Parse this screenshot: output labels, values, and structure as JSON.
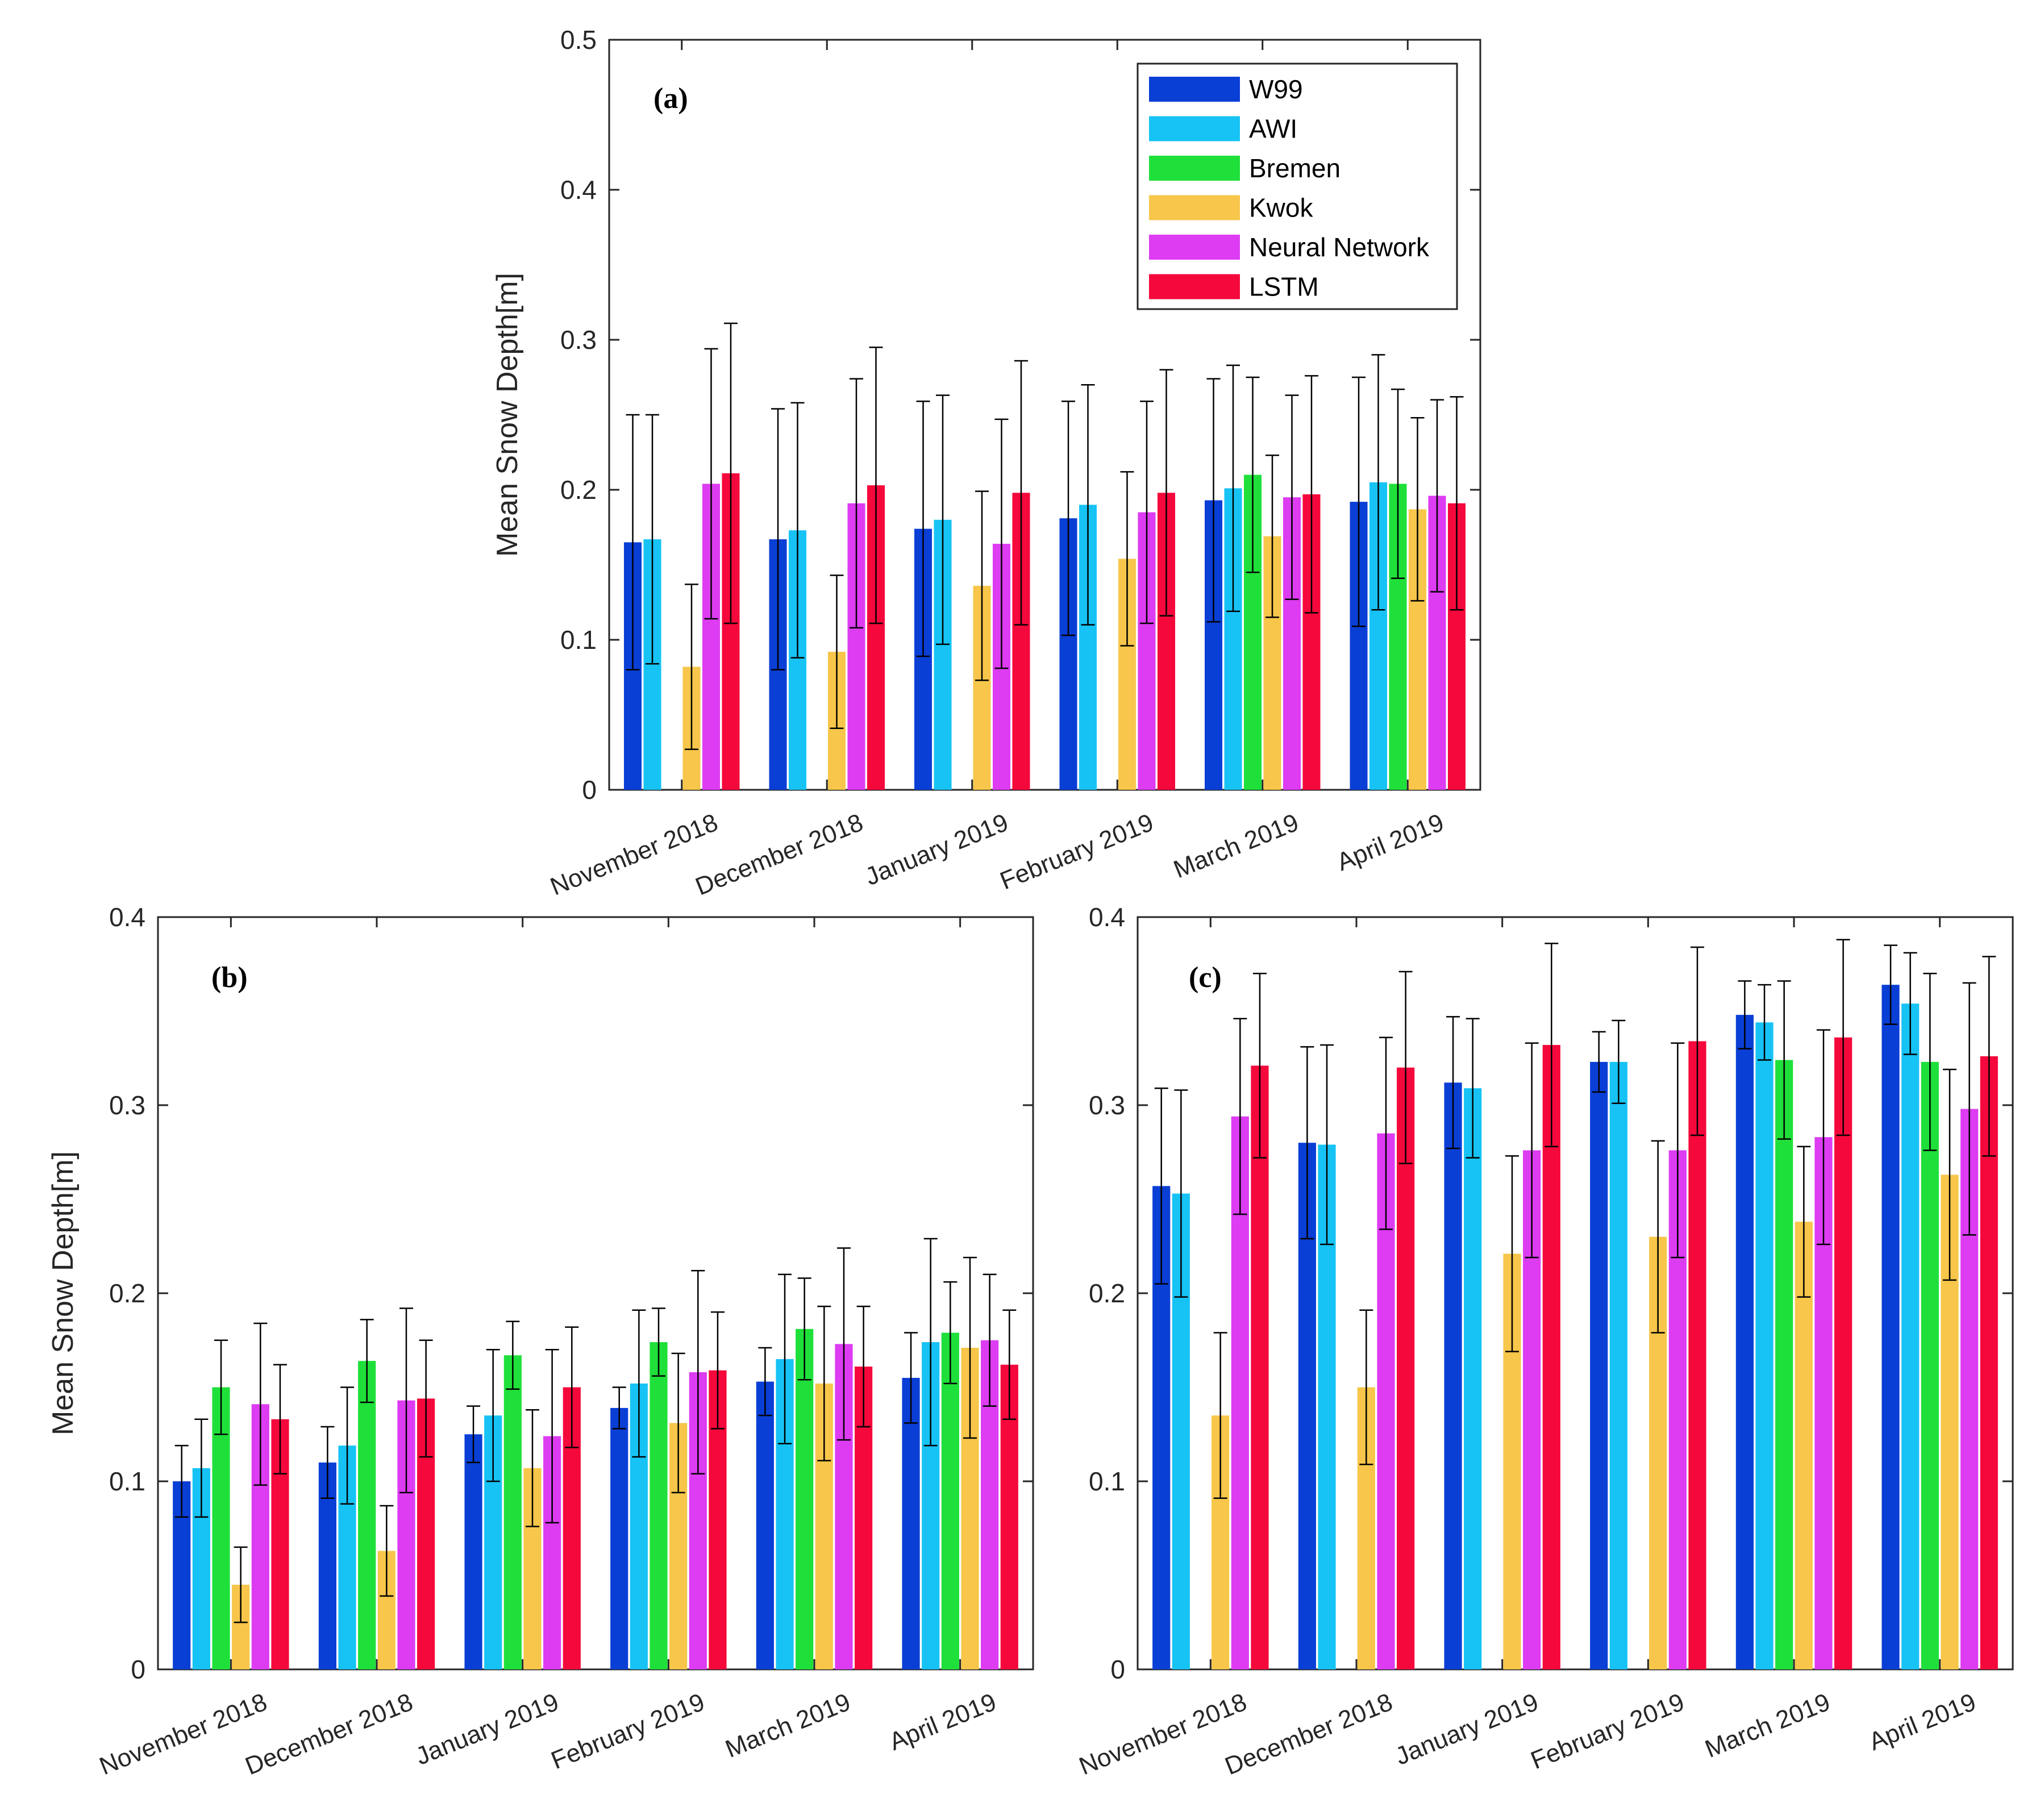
{
  "colors": {
    "W99": "#0a3fd6",
    "AWI": "#17c3f5",
    "Bremen": "#1fe03a",
    "Kwok": "#f7c64a",
    "Neural Network": "#dd3cf2",
    "LSTM": "#f5083b"
  },
  "chart_data": [
    {
      "type": "bar",
      "panel_label": "(a)",
      "ylabel": "Mean Snow Depth[m]",
      "ylim": [
        0,
        0.5
      ],
      "yticks": [
        "0",
        "0.1",
        "0.2",
        "0.3",
        "0.4",
        "0.5"
      ],
      "categories": [
        "November 2018",
        "December 2018",
        "January 2019",
        "February 2019",
        "March 2019",
        "April 2019"
      ],
      "legend": {
        "position": "top-right",
        "entries": [
          "W99",
          "AWI",
          "Bremen",
          "Kwok",
          "Neural Network",
          "LSTM"
        ]
      },
      "series": [
        {
          "name": "W99",
          "values": [
            0.165,
            0.167,
            0.174,
            0.181,
            0.193,
            0.192
          ],
          "error": [
            0.085,
            0.087,
            0.085,
            0.078,
            0.081,
            0.083
          ]
        },
        {
          "name": "AWI",
          "values": [
            0.167,
            0.173,
            0.18,
            0.19,
            0.201,
            0.205
          ],
          "error": [
            0.083,
            0.085,
            0.083,
            0.08,
            0.082,
            0.085
          ]
        },
        {
          "name": "Bremen",
          "values": [
            null,
            null,
            null,
            null,
            0.21,
            0.204
          ],
          "error": [
            null,
            null,
            null,
            null,
            0.065,
            0.063
          ]
        },
        {
          "name": "Kwok",
          "values": [
            0.082,
            0.092,
            0.136,
            0.154,
            0.169,
            0.187
          ],
          "error": [
            0.055,
            0.051,
            0.063,
            0.058,
            0.054,
            0.061
          ]
        },
        {
          "name": "Neural Network",
          "values": [
            0.204,
            0.191,
            0.164,
            0.185,
            0.195,
            0.196
          ],
          "error": [
            0.09,
            0.083,
            0.083,
            0.074,
            0.068,
            0.064
          ]
        },
        {
          "name": "LSTM",
          "values": [
            0.211,
            0.203,
            0.198,
            0.198,
            0.197,
            0.191
          ],
          "error": [
            0.1,
            0.092,
            0.088,
            0.082,
            0.079,
            0.071
          ]
        }
      ]
    },
    {
      "type": "bar",
      "panel_label": "(b)",
      "ylabel": "Mean Snow Depth[m]",
      "ylim": [
        0,
        0.4
      ],
      "yticks": [
        "0",
        "0.1",
        "0.2",
        "0.3",
        "0.4"
      ],
      "categories": [
        "November 2018",
        "December 2018",
        "January 2019",
        "February 2019",
        "March 2019",
        "April 2019"
      ],
      "series": [
        {
          "name": "W99",
          "values": [
            0.1,
            0.11,
            0.125,
            0.139,
            0.153,
            0.155
          ],
          "error": [
            0.019,
            0.019,
            0.015,
            0.011,
            0.018,
            0.024
          ]
        },
        {
          "name": "AWI",
          "values": [
            0.107,
            0.119,
            0.135,
            0.152,
            0.165,
            0.174
          ],
          "error": [
            0.026,
            0.031,
            0.035,
            0.039,
            0.045,
            0.055
          ]
        },
        {
          "name": "Bremen",
          "values": [
            0.15,
            0.164,
            0.167,
            0.174,
            0.181,
            0.179
          ],
          "error": [
            0.025,
            0.022,
            0.018,
            0.018,
            0.027,
            0.027
          ]
        },
        {
          "name": "Kwok",
          "values": [
            0.045,
            0.063,
            0.107,
            0.131,
            0.152,
            0.171
          ],
          "error": [
            0.02,
            0.024,
            0.031,
            0.037,
            0.041,
            0.048
          ]
        },
        {
          "name": "Neural Network",
          "values": [
            0.141,
            0.143,
            0.124,
            0.158,
            0.173,
            0.175
          ],
          "error": [
            0.043,
            0.049,
            0.046,
            0.054,
            0.051,
            0.035
          ]
        },
        {
          "name": "LSTM",
          "values": [
            0.133,
            0.144,
            0.15,
            0.159,
            0.161,
            0.162
          ],
          "error": [
            0.029,
            0.031,
            0.032,
            0.031,
            0.032,
            0.029
          ]
        }
      ]
    },
    {
      "type": "bar",
      "panel_label": "(c)",
      "ylabel": "",
      "ylim": [
        0,
        0.4
      ],
      "yticks": [
        "0",
        "0.1",
        "0.2",
        "0.3",
        "0.4"
      ],
      "categories": [
        "November 2018",
        "December 2018",
        "January 2019",
        "February 2019",
        "March 2019",
        "April 2019"
      ],
      "series": [
        {
          "name": "W99",
          "values": [
            0.257,
            0.28,
            0.312,
            0.323,
            0.348,
            0.364
          ],
          "error": [
            0.052,
            0.051,
            0.035,
            0.016,
            0.018,
            0.021
          ]
        },
        {
          "name": "AWI",
          "values": [
            0.253,
            0.279,
            0.309,
            0.323,
            0.344,
            0.354
          ],
          "error": [
            0.055,
            0.053,
            0.037,
            0.022,
            0.02,
            0.027
          ]
        },
        {
          "name": "Bremen",
          "values": [
            null,
            null,
            null,
            null,
            0.324,
            0.323
          ],
          "error": [
            null,
            null,
            null,
            null,
            0.042,
            0.047
          ]
        },
        {
          "name": "Kwok",
          "values": [
            0.135,
            0.15,
            0.221,
            0.23,
            0.238,
            0.263
          ],
          "error": [
            0.044,
            0.041,
            0.052,
            0.051,
            0.04,
            0.056
          ]
        },
        {
          "name": "Neural Network",
          "values": [
            0.294,
            0.285,
            0.276,
            0.276,
            0.283,
            0.298
          ],
          "error": [
            0.052,
            0.051,
            0.057,
            0.057,
            0.057,
            0.067
          ]
        },
        {
          "name": "LSTM",
          "values": [
            0.321,
            0.32,
            0.332,
            0.334,
            0.336,
            0.326
          ],
          "error": [
            0.049,
            0.051,
            0.054,
            0.05,
            0.052,
            0.053
          ]
        }
      ]
    }
  ]
}
